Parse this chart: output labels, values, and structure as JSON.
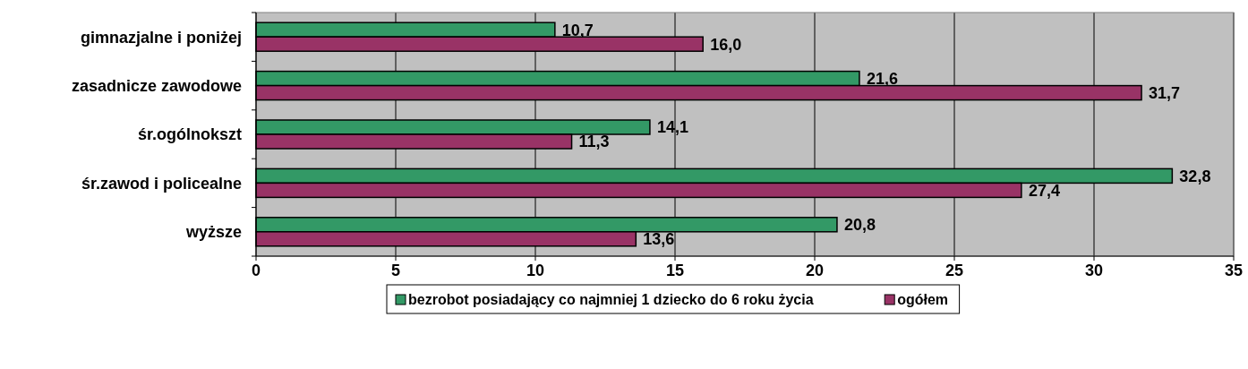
{
  "chart_data": {
    "type": "bar",
    "orientation": "horizontal",
    "categories": [
      "gimnazjalne i poniżej",
      "zasadnicze zawodowe",
      "śr.ogólnokszt",
      "śr.zawod i policealne",
      "wyższe"
    ],
    "series": [
      {
        "name": "bezrobot posiadający co najmniej 1 dziecko do 6 roku życia",
        "color": "#339966",
        "values": [
          10.7,
          21.6,
          14.1,
          32.8,
          20.8
        ],
        "value_labels": [
          "10,7",
          "21,6",
          "14,1",
          "32,8",
          "20,8"
        ]
      },
      {
        "name": "ogółem",
        "color": "#993366",
        "values": [
          16.0,
          31.7,
          11.3,
          27.4,
          13.6
        ],
        "value_labels": [
          "16,0",
          "31,7",
          "11,3",
          "27,4",
          "13,6"
        ]
      }
    ],
    "xlim": [
      0,
      35
    ],
    "xticks": [
      0,
      5,
      10,
      15,
      20,
      25,
      30,
      35
    ],
    "grid": "x",
    "legend": "bottom"
  }
}
